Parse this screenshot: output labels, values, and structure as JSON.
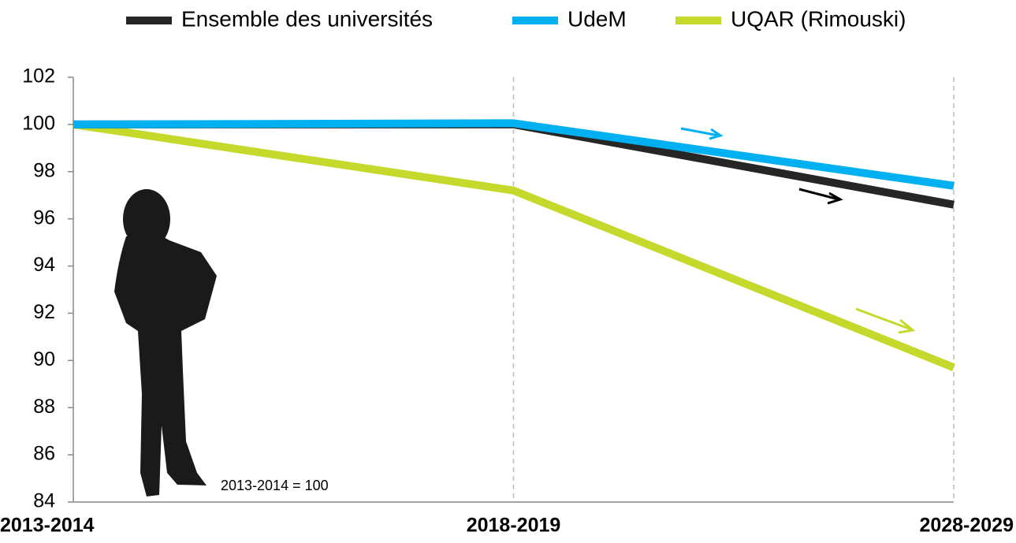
{
  "chart_data": {
    "type": "line",
    "categories": [
      "2013-2014",
      "2018-2019",
      "2028-2029"
    ],
    "series": [
      {
        "name": "Ensemble des universités",
        "color": "#262626",
        "values": [
          100,
          100,
          96.6
        ]
      },
      {
        "name": "UdeM",
        "color": "#00b0f0",
        "values": [
          100,
          100.05,
          97.4
        ]
      },
      {
        "name": "UQAR (Rimouski)",
        "color": "#c5d92d",
        "values": [
          100,
          97.2,
          89.7
        ]
      }
    ],
    "ylim": [
      84,
      102
    ],
    "yticks": [
      84,
      86,
      88,
      90,
      92,
      94,
      96,
      98,
      100,
      102
    ],
    "annotation": "2013-2014 = 100"
  }
}
